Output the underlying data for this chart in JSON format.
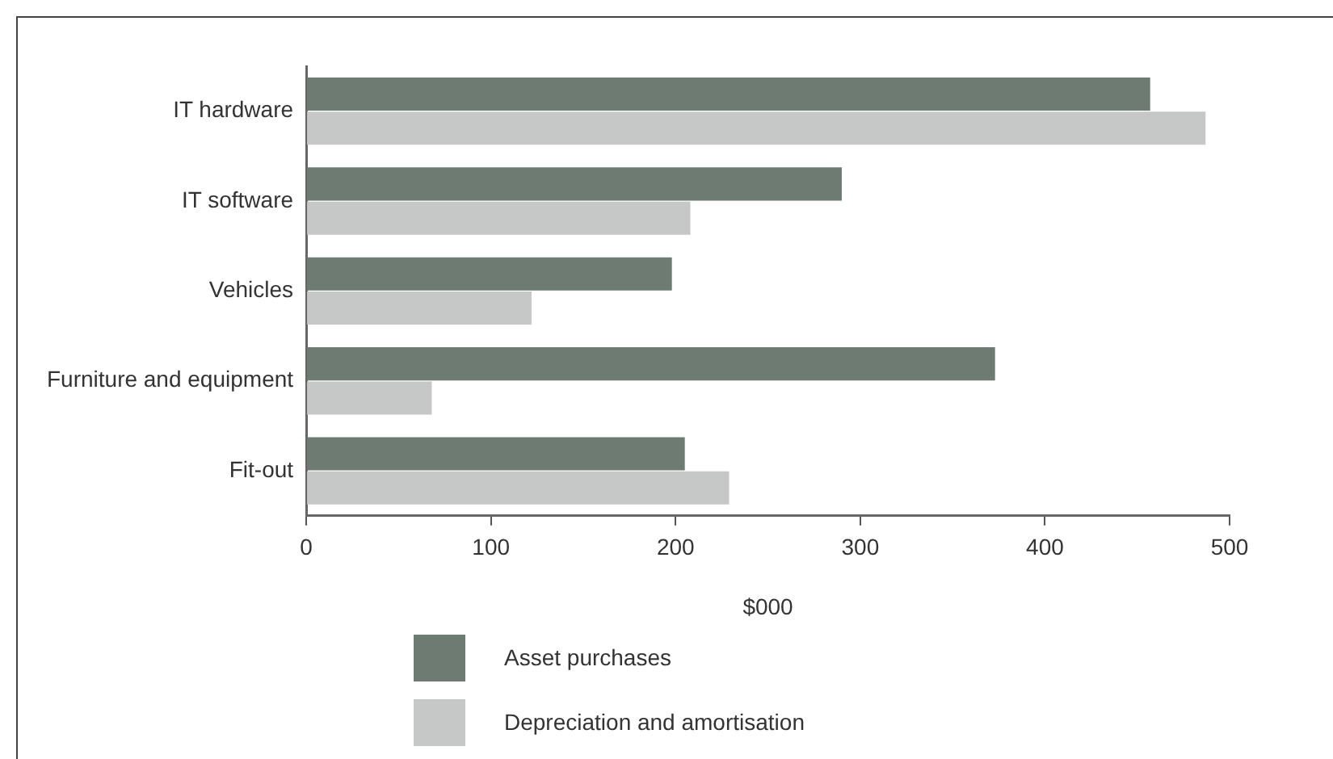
{
  "chart_data": {
    "type": "bar",
    "orientation": "horizontal",
    "xlabel": "$000",
    "categories": [
      "IT hardware",
      "IT software",
      "Vehicles",
      "Furniture and equipment",
      "Fit-out"
    ],
    "series": [
      {
        "name": "Asset purchases",
        "color": "#6e7b73",
        "values": [
          457,
          290,
          198,
          373,
          205
        ]
      },
      {
        "name": "Depreciation and amortisation",
        "color": "#c6c8c7",
        "values": [
          487,
          208,
          122,
          68,
          229
        ]
      }
    ],
    "xlim": [
      0,
      500
    ],
    "xticks": [
      0,
      100,
      200,
      300,
      400,
      500
    ],
    "grid": false,
    "legend": "bottom"
  }
}
